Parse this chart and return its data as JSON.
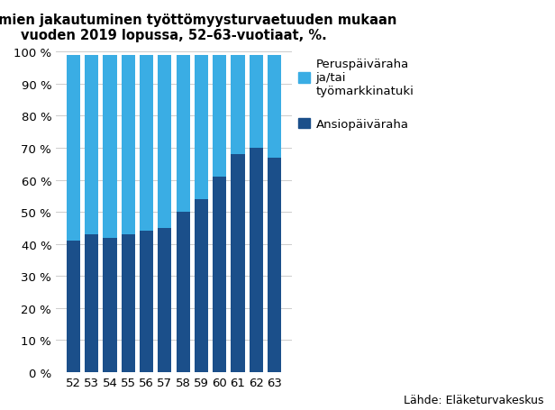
{
  "title_line1": "Työttömien jakautuminen työttömyysturvaetuuden mukaan",
  "title_line2": "vuoden 2019 lopussa, 52–63-vuotiaat, %.",
  "categories": [
    "52",
    "53",
    "54",
    "55",
    "56",
    "57",
    "58",
    "59",
    "60",
    "61",
    "62",
    "63"
  ],
  "ansio": [
    41,
    43,
    42,
    43,
    44,
    45,
    50,
    54,
    61,
    68,
    70,
    67
  ],
  "perus": [
    58,
    56,
    57,
    56,
    55,
    54,
    49,
    45,
    38,
    31,
    29,
    32
  ],
  "color_ansio": "#1B4F8A",
  "color_perus": "#3AADE4",
  "label_ansio": "Ansiopäiväraha",
  "label_perus": "Peruspäiväraha\nja/tai\ntyömarkkinatuki",
  "source": "Lähde: Eläketurvakeskus",
  "ylim": [
    0,
    100
  ],
  "yticks": [
    0,
    10,
    20,
    30,
    40,
    50,
    60,
    70,
    80,
    90,
    100
  ],
  "ytick_labels": [
    "0 %",
    "10 %",
    "20 %",
    "30 %",
    "40 %",
    "50 %",
    "60 %",
    "70 %",
    "80 %",
    "90 %",
    "100 %"
  ],
  "background_color": "#FFFFFF",
  "title_fontsize": 10.5,
  "tick_fontsize": 9.5,
  "legend_fontsize": 9.5,
  "source_fontsize": 9,
  "bar_width": 0.75
}
